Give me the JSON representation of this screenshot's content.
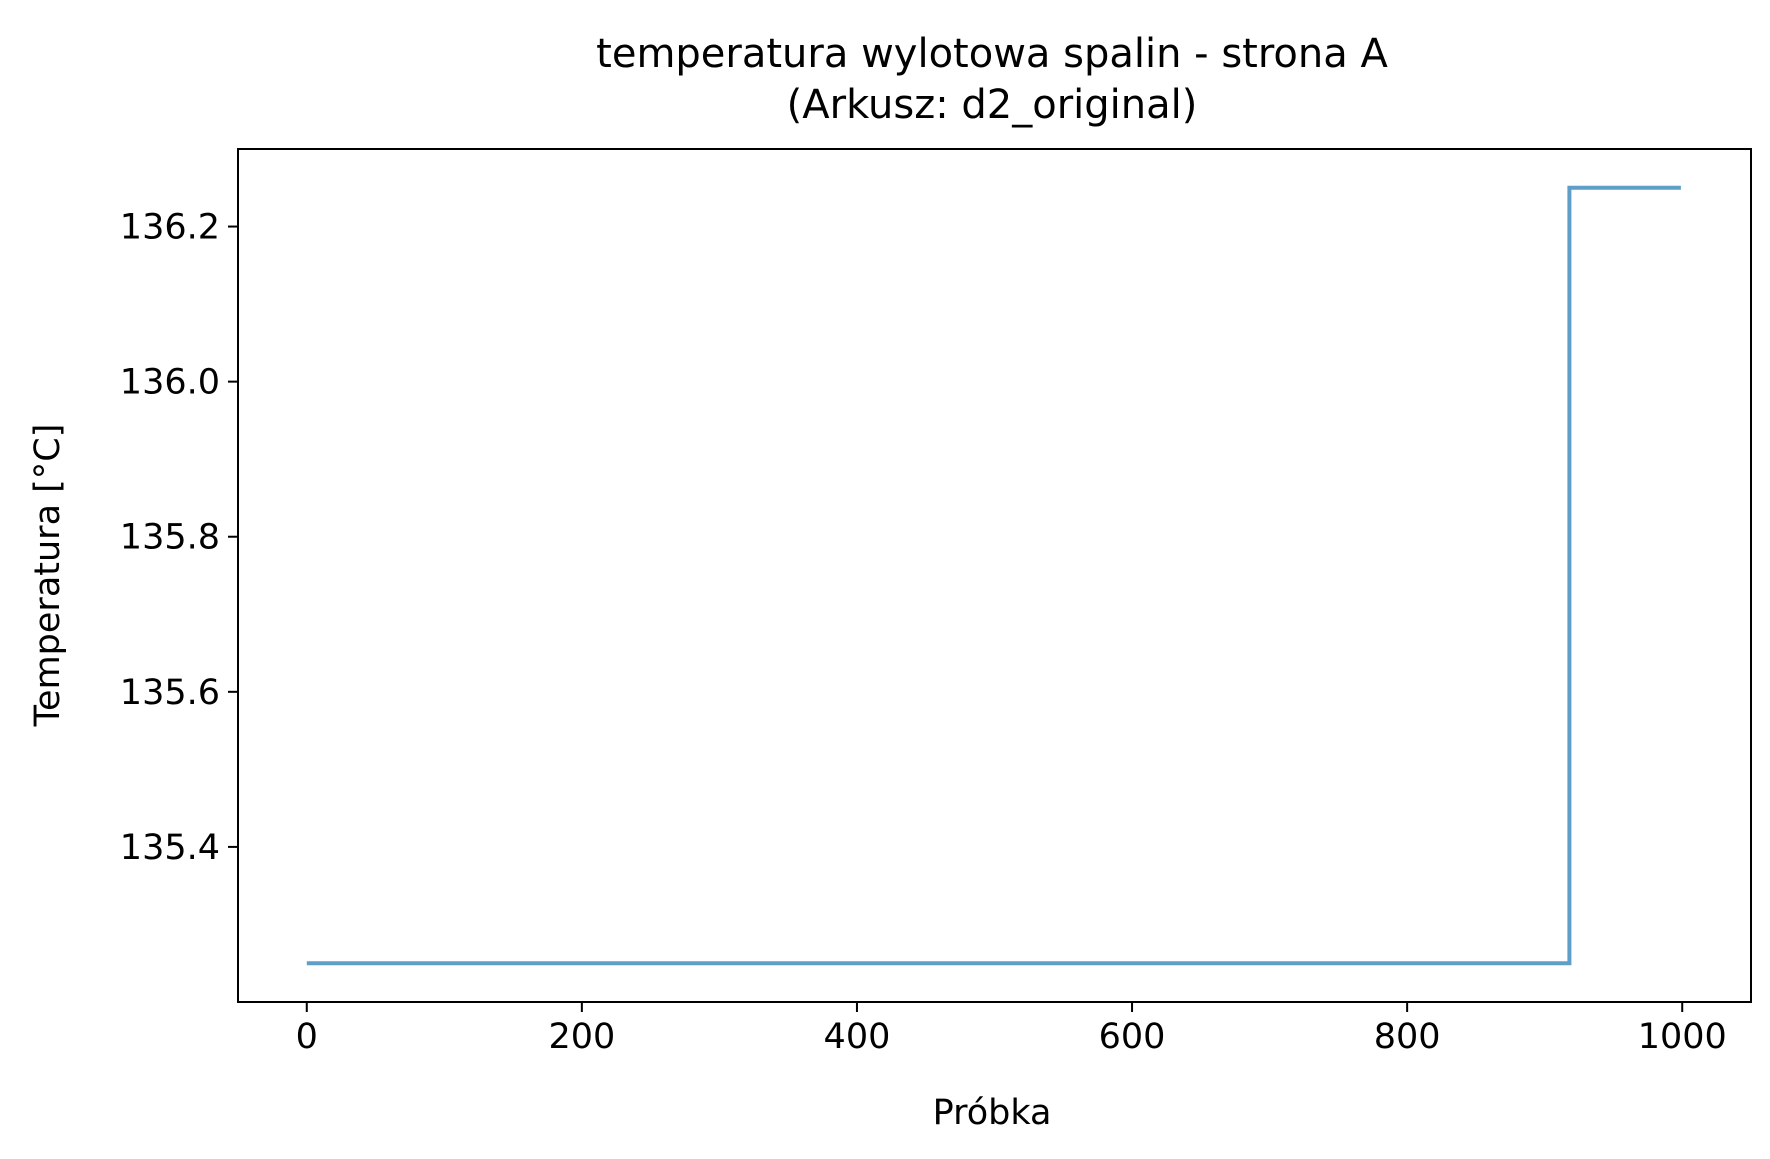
{
  "chart_data": {
    "type": "line",
    "title": "temperatura wylotowa spalin - strona A",
    "subtitle": "(Arkusz: d2_original)",
    "xlabel": "Próbka",
    "ylabel": "Temperatura [°C]",
    "xlim": [
      -50,
      1050
    ],
    "ylim": [
      135.2,
      136.3
    ],
    "grid": false,
    "x_ticks": [
      0,
      200,
      400,
      600,
      800,
      1000
    ],
    "x_tick_labels": [
      "0",
      "200",
      "400",
      "600",
      "800",
      "1000"
    ],
    "y_ticks": [
      135.4,
      135.6,
      135.8,
      136.0,
      136.2
    ],
    "y_tick_labels": [
      "135.4",
      "135.6",
      "135.8",
      "136.0",
      "136.2"
    ],
    "series": [
      {
        "color": "#5f9ec8",
        "x": [
          0,
          918,
          918,
          999
        ],
        "y": [
          135.25,
          135.25,
          136.25,
          136.25
        ]
      }
    ]
  }
}
